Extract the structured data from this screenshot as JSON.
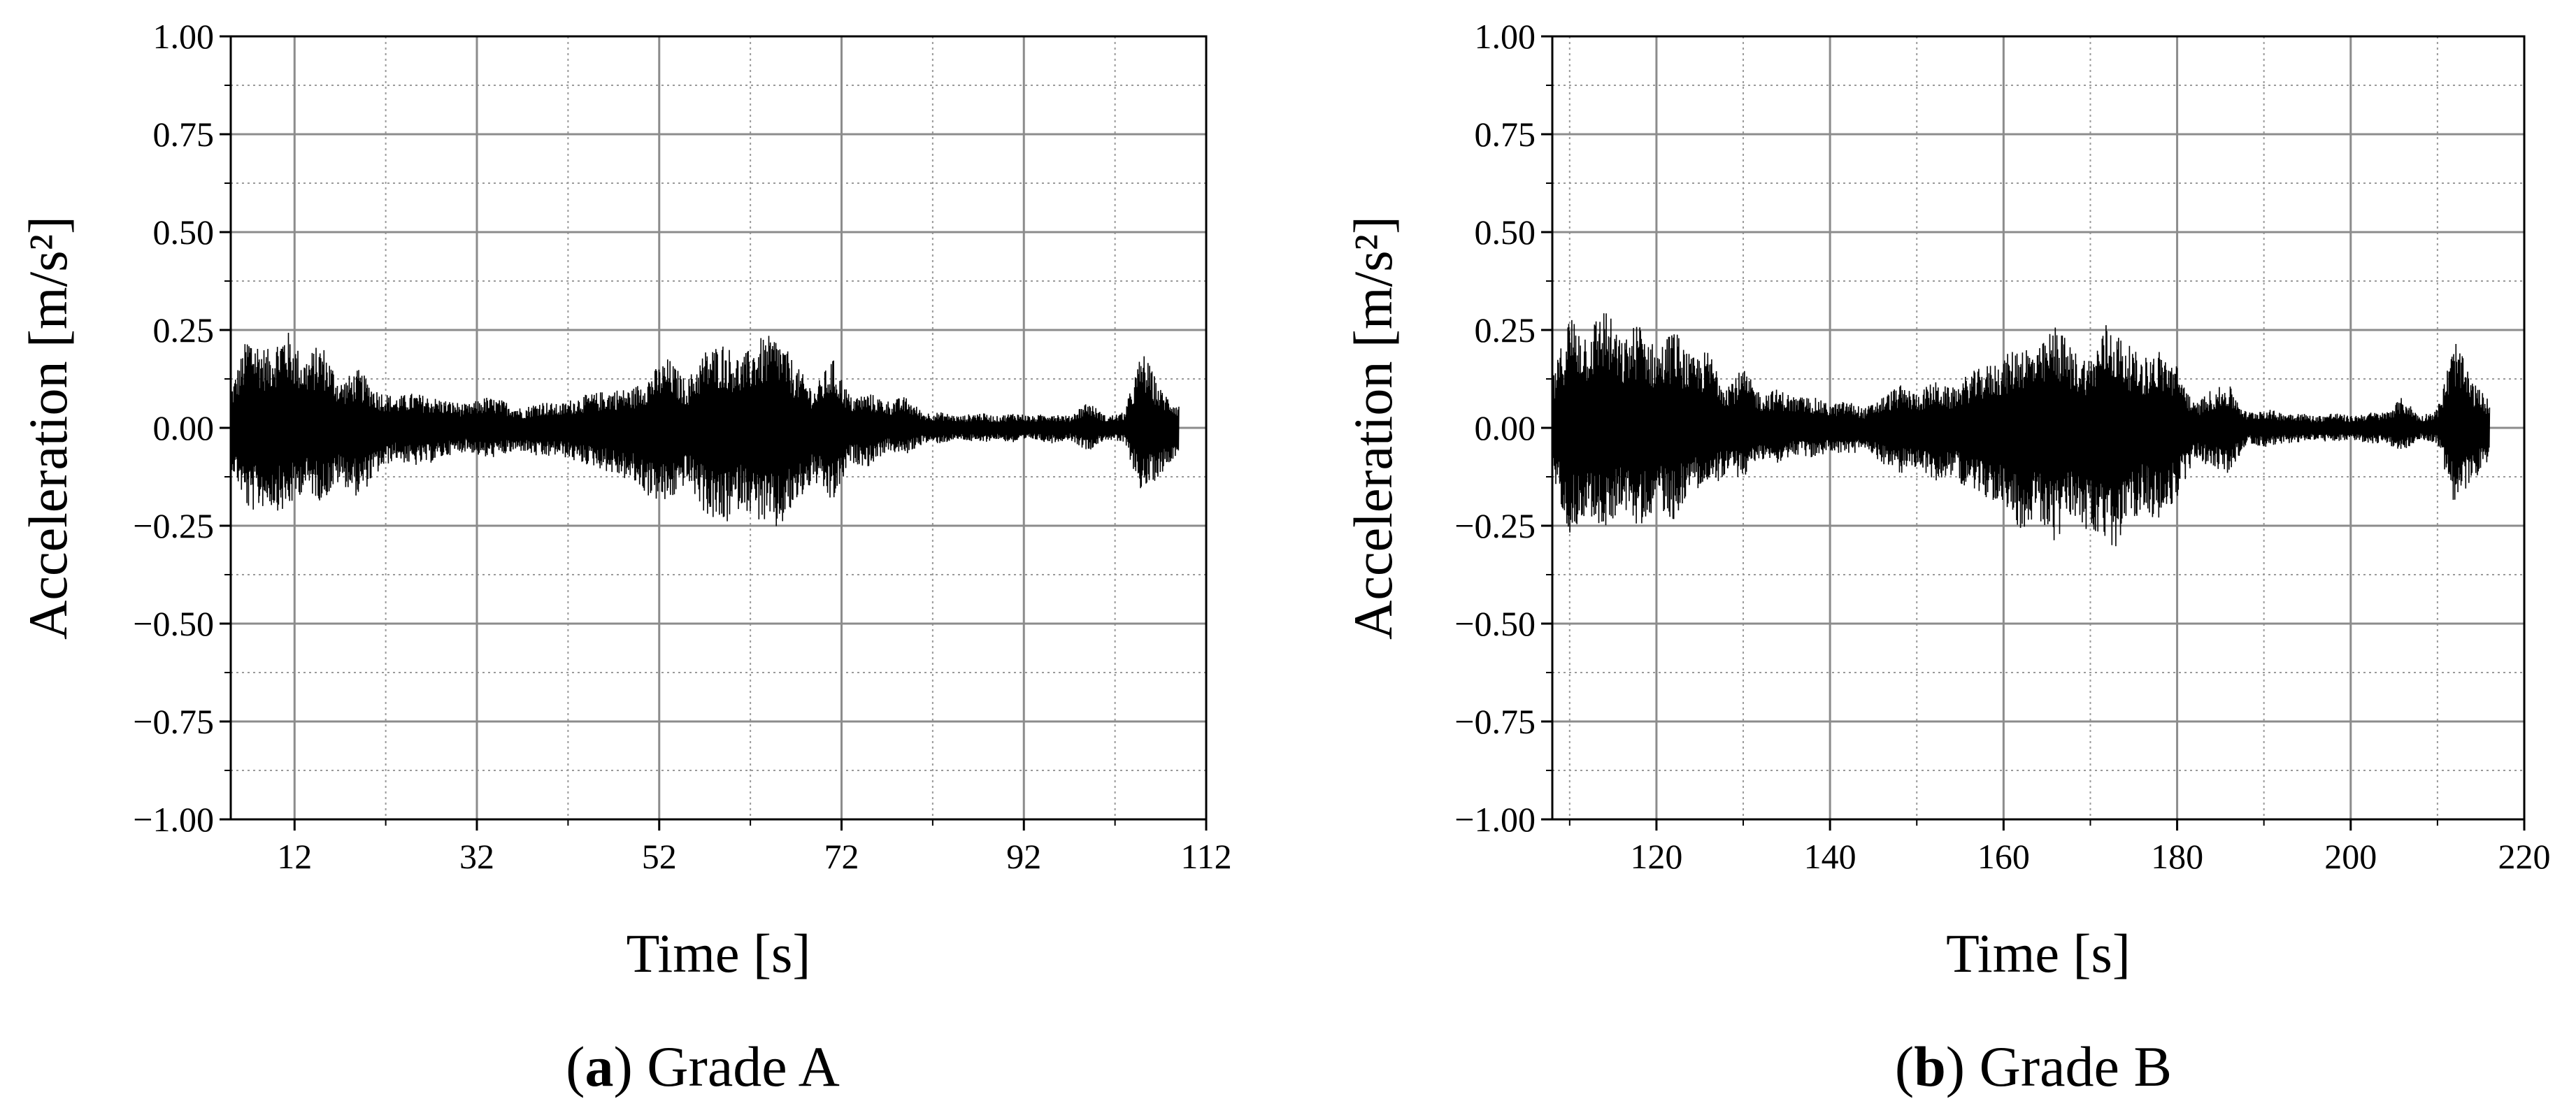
{
  "figure": {
    "panels": [
      {
        "caption_letter": "a",
        "caption_text": "Grade A"
      },
      {
        "caption_letter": "b",
        "caption_text": "Grade B"
      }
    ]
  },
  "chart_data": [
    {
      "type": "line",
      "title": "",
      "xlabel": "Time [s]",
      "ylabel": "Acceleration [m/s²]",
      "xlim": [
        5,
        112
      ],
      "ylim": [
        -1.0,
        1.0
      ],
      "x_ticks": [
        12,
        32,
        52,
        72,
        92,
        112
      ],
      "x_tick_labels": [
        "12",
        "32",
        "52",
        "72",
        "92",
        "112"
      ],
      "y_ticks": [
        -1.0,
        -0.75,
        -0.5,
        -0.25,
        0.0,
        0.25,
        0.5,
        0.75,
        1.0
      ],
      "y_tick_labels": [
        "−1.00",
        "−0.75",
        "−0.50",
        "−0.25",
        "0.00",
        "0.25",
        "0.50",
        "0.75",
        "1.00"
      ],
      "grid": true,
      "line_color": "#000000",
      "series": [
        {
          "x": [
            5,
            7,
            9,
            11,
            13,
            15,
            17,
            19,
            21,
            23,
            25,
            27,
            29,
            31,
            33,
            35,
            37,
            39,
            41,
            43,
            45,
            47,
            49,
            51,
            53,
            55,
            57,
            59,
            61,
            63,
            65,
            67,
            69,
            71,
            73,
            75,
            77,
            79,
            81,
            83,
            85,
            87,
            89,
            91,
            93,
            95,
            97,
            99,
            101,
            103,
            105,
            107,
            109
          ],
          "upper": [
            0.1,
            0.25,
            0.2,
            0.26,
            0.18,
            0.22,
            0.12,
            0.15,
            0.1,
            0.08,
            0.09,
            0.08,
            0.07,
            0.06,
            0.08,
            0.07,
            0.05,
            0.07,
            0.06,
            0.08,
            0.09,
            0.1,
            0.1,
            0.14,
            0.18,
            0.12,
            0.2,
            0.22,
            0.18,
            0.23,
            0.24,
            0.16,
            0.1,
            0.18,
            0.08,
            0.09,
            0.07,
            0.08,
            0.04,
            0.04,
            0.03,
            0.04,
            0.03,
            0.04,
            0.03,
            0.04,
            0.03,
            0.07,
            0.03,
            0.04,
            0.2,
            0.1,
            0.06
          ],
          "lower": [
            -0.1,
            -0.22,
            -0.2,
            -0.22,
            -0.16,
            -0.19,
            -0.14,
            -0.18,
            -0.12,
            -0.08,
            -0.1,
            -0.09,
            -0.07,
            -0.06,
            -0.08,
            -0.07,
            -0.06,
            -0.08,
            -0.07,
            -0.09,
            -0.1,
            -0.12,
            -0.14,
            -0.18,
            -0.2,
            -0.14,
            -0.22,
            -0.26,
            -0.2,
            -0.24,
            -0.27,
            -0.2,
            -0.14,
            -0.2,
            -0.09,
            -0.1,
            -0.06,
            -0.07,
            -0.04,
            -0.04,
            -0.03,
            -0.04,
            -0.03,
            -0.04,
            -0.03,
            -0.04,
            -0.03,
            -0.06,
            -0.03,
            -0.04,
            -0.17,
            -0.12,
            -0.06
          ]
        }
      ]
    },
    {
      "type": "line",
      "title": "",
      "xlabel": "Time [s]",
      "ylabel": "Acceleration [m/s²]",
      "xlim": [
        108,
        220
      ],
      "ylim": [
        -1.0,
        1.0
      ],
      "x_ticks": [
        120,
        140,
        160,
        180,
        200,
        220
      ],
      "x_tick_labels": [
        "120",
        "140",
        "160",
        "180",
        "200",
        "220"
      ],
      "y_ticks": [
        -1.0,
        -0.75,
        -0.5,
        -0.25,
        0.0,
        0.25,
        0.5,
        0.75,
        1.0
      ],
      "y_tick_labels": [
        "−1.00",
        "−0.75",
        "−0.50",
        "−0.25",
        "0.00",
        "0.25",
        "0.50",
        "0.75",
        "1.00"
      ],
      "grid": true,
      "line_color": "#000000",
      "series": [
        {
          "x": [
            108,
            110,
            112,
            114,
            116,
            118,
            120,
            122,
            124,
            126,
            128,
            130,
            132,
            134,
            136,
            138,
            140,
            142,
            144,
            146,
            148,
            150,
            152,
            154,
            156,
            158,
            160,
            162,
            164,
            166,
            168,
            170,
            172,
            174,
            176,
            178,
            180,
            182,
            184,
            186,
            188,
            190,
            192,
            194,
            196,
            198,
            200,
            202,
            204,
            206,
            208,
            210,
            212,
            214,
            216
          ],
          "upper": [
            0.12,
            0.3,
            0.25,
            0.32,
            0.22,
            0.28,
            0.2,
            0.26,
            0.18,
            0.2,
            0.12,
            0.15,
            0.09,
            0.1,
            0.08,
            0.08,
            0.06,
            0.07,
            0.05,
            0.08,
            0.11,
            0.09,
            0.12,
            0.1,
            0.14,
            0.16,
            0.18,
            0.22,
            0.2,
            0.27,
            0.2,
            0.18,
            0.28,
            0.22,
            0.18,
            0.2,
            0.16,
            0.06,
            0.1,
            0.11,
            0.04,
            0.05,
            0.04,
            0.04,
            0.03,
            0.04,
            0.03,
            0.04,
            0.04,
            0.08,
            0.03,
            0.05,
            0.23,
            0.12,
            0.07
          ],
          "lower": [
            -0.12,
            -0.27,
            -0.22,
            -0.27,
            -0.2,
            -0.26,
            -0.2,
            -0.24,
            -0.15,
            -0.16,
            -0.12,
            -0.13,
            -0.08,
            -0.09,
            -0.07,
            -0.08,
            -0.06,
            -0.07,
            -0.06,
            -0.09,
            -0.12,
            -0.1,
            -0.14,
            -0.12,
            -0.16,
            -0.18,
            -0.2,
            -0.26,
            -0.24,
            -0.3,
            -0.22,
            -0.28,
            -0.33,
            -0.28,
            -0.2,
            -0.25,
            -0.18,
            -0.08,
            -0.1,
            -0.12,
            -0.04,
            -0.05,
            -0.04,
            -0.04,
            -0.03,
            -0.04,
            -0.03,
            -0.04,
            -0.04,
            -0.06,
            -0.03,
            -0.04,
            -0.21,
            -0.14,
            -0.08
          ]
        }
      ]
    }
  ]
}
